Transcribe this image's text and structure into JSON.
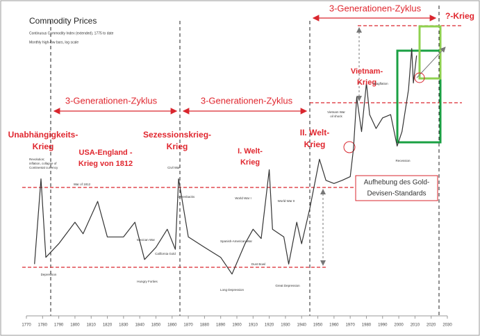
{
  "chart_data": {
    "type": "line",
    "title": "Commodity Prices",
    "subtitle": [
      "Continuous Commodity Index (extended), 1775 to date",
      "Monthly high-low bars, log scale"
    ],
    "x": [
      1775,
      1779,
      1782,
      1790,
      1800,
      1805,
      1814,
      1820,
      1830,
      1837,
      1843,
      1850,
      1857,
      1862,
      1864,
      1870,
      1880,
      1890,
      1897,
      1905,
      1910,
      1915,
      1920,
      1922,
      1929,
      1932,
      1937,
      1940,
      1945,
      1951,
      1955,
      1960,
      1965,
      1970,
      1972,
      1974,
      1977,
      1980,
      1982,
      1986,
      1990,
      1995,
      1999,
      2002,
      2006,
      2008,
      2009,
      2011
    ],
    "values": [
      32,
      100,
      35,
      42,
      56,
      48,
      74,
      46,
      46,
      56,
      34,
      40,
      51,
      39,
      100,
      46,
      40,
      35,
      28,
      42,
      51,
      45,
      113,
      51,
      46,
      32,
      56,
      42,
      67,
      130,
      98,
      94,
      98,
      103,
      149,
      298,
      188,
      360,
      236,
      196,
      226,
      236,
      155,
      188,
      330,
      572,
      360,
      520
    ],
    "color": "#333333",
    "log_scale": true,
    "xlim": [
      1770,
      2030
    ],
    "xticks": [
      1770,
      1780,
      1790,
      1800,
      1810,
      1820,
      1830,
      1840,
      1850,
      1860,
      1870,
      1880,
      1890,
      1900,
      1910,
      1920,
      1930,
      1940,
      1950,
      1960,
      1970,
      1980,
      1990,
      2000,
      2010,
      2020,
      2030
    ],
    "ylim": [
      20,
      700
    ],
    "annotations": [
      "3-Generationen-Zyklus",
      "3-Generationen-Zyklus",
      "3-Generationen-Zyklus",
      "?-Krieg",
      "Unabhängigkeits-",
      "Krieg",
      "USA-England  -",
      "Krieg von 1812",
      "Sezessionskrieg-",
      "Krieg",
      "I. Welt-",
      "Krieg",
      "II. Welt-",
      "Krieg",
      "Vietnam-",
      "Krieg",
      "Aufhebung des Gold-",
      "Devisen-Standards",
      "Revolution;",
      "inflation, collapse of",
      "Continental currency",
      "Depression",
      "War of 1812",
      "Mexican War",
      "Hungry Forties",
      "California Gold",
      "Civil War",
      "Greenbacks",
      "Long Depression",
      "Spanish-American War",
      "World War I",
      "World War II",
      "Dust Bowl",
      "Great Depression",
      "Vietnam War",
      "oil shock",
      "Stagflation",
      "Recession"
    ]
  }
}
